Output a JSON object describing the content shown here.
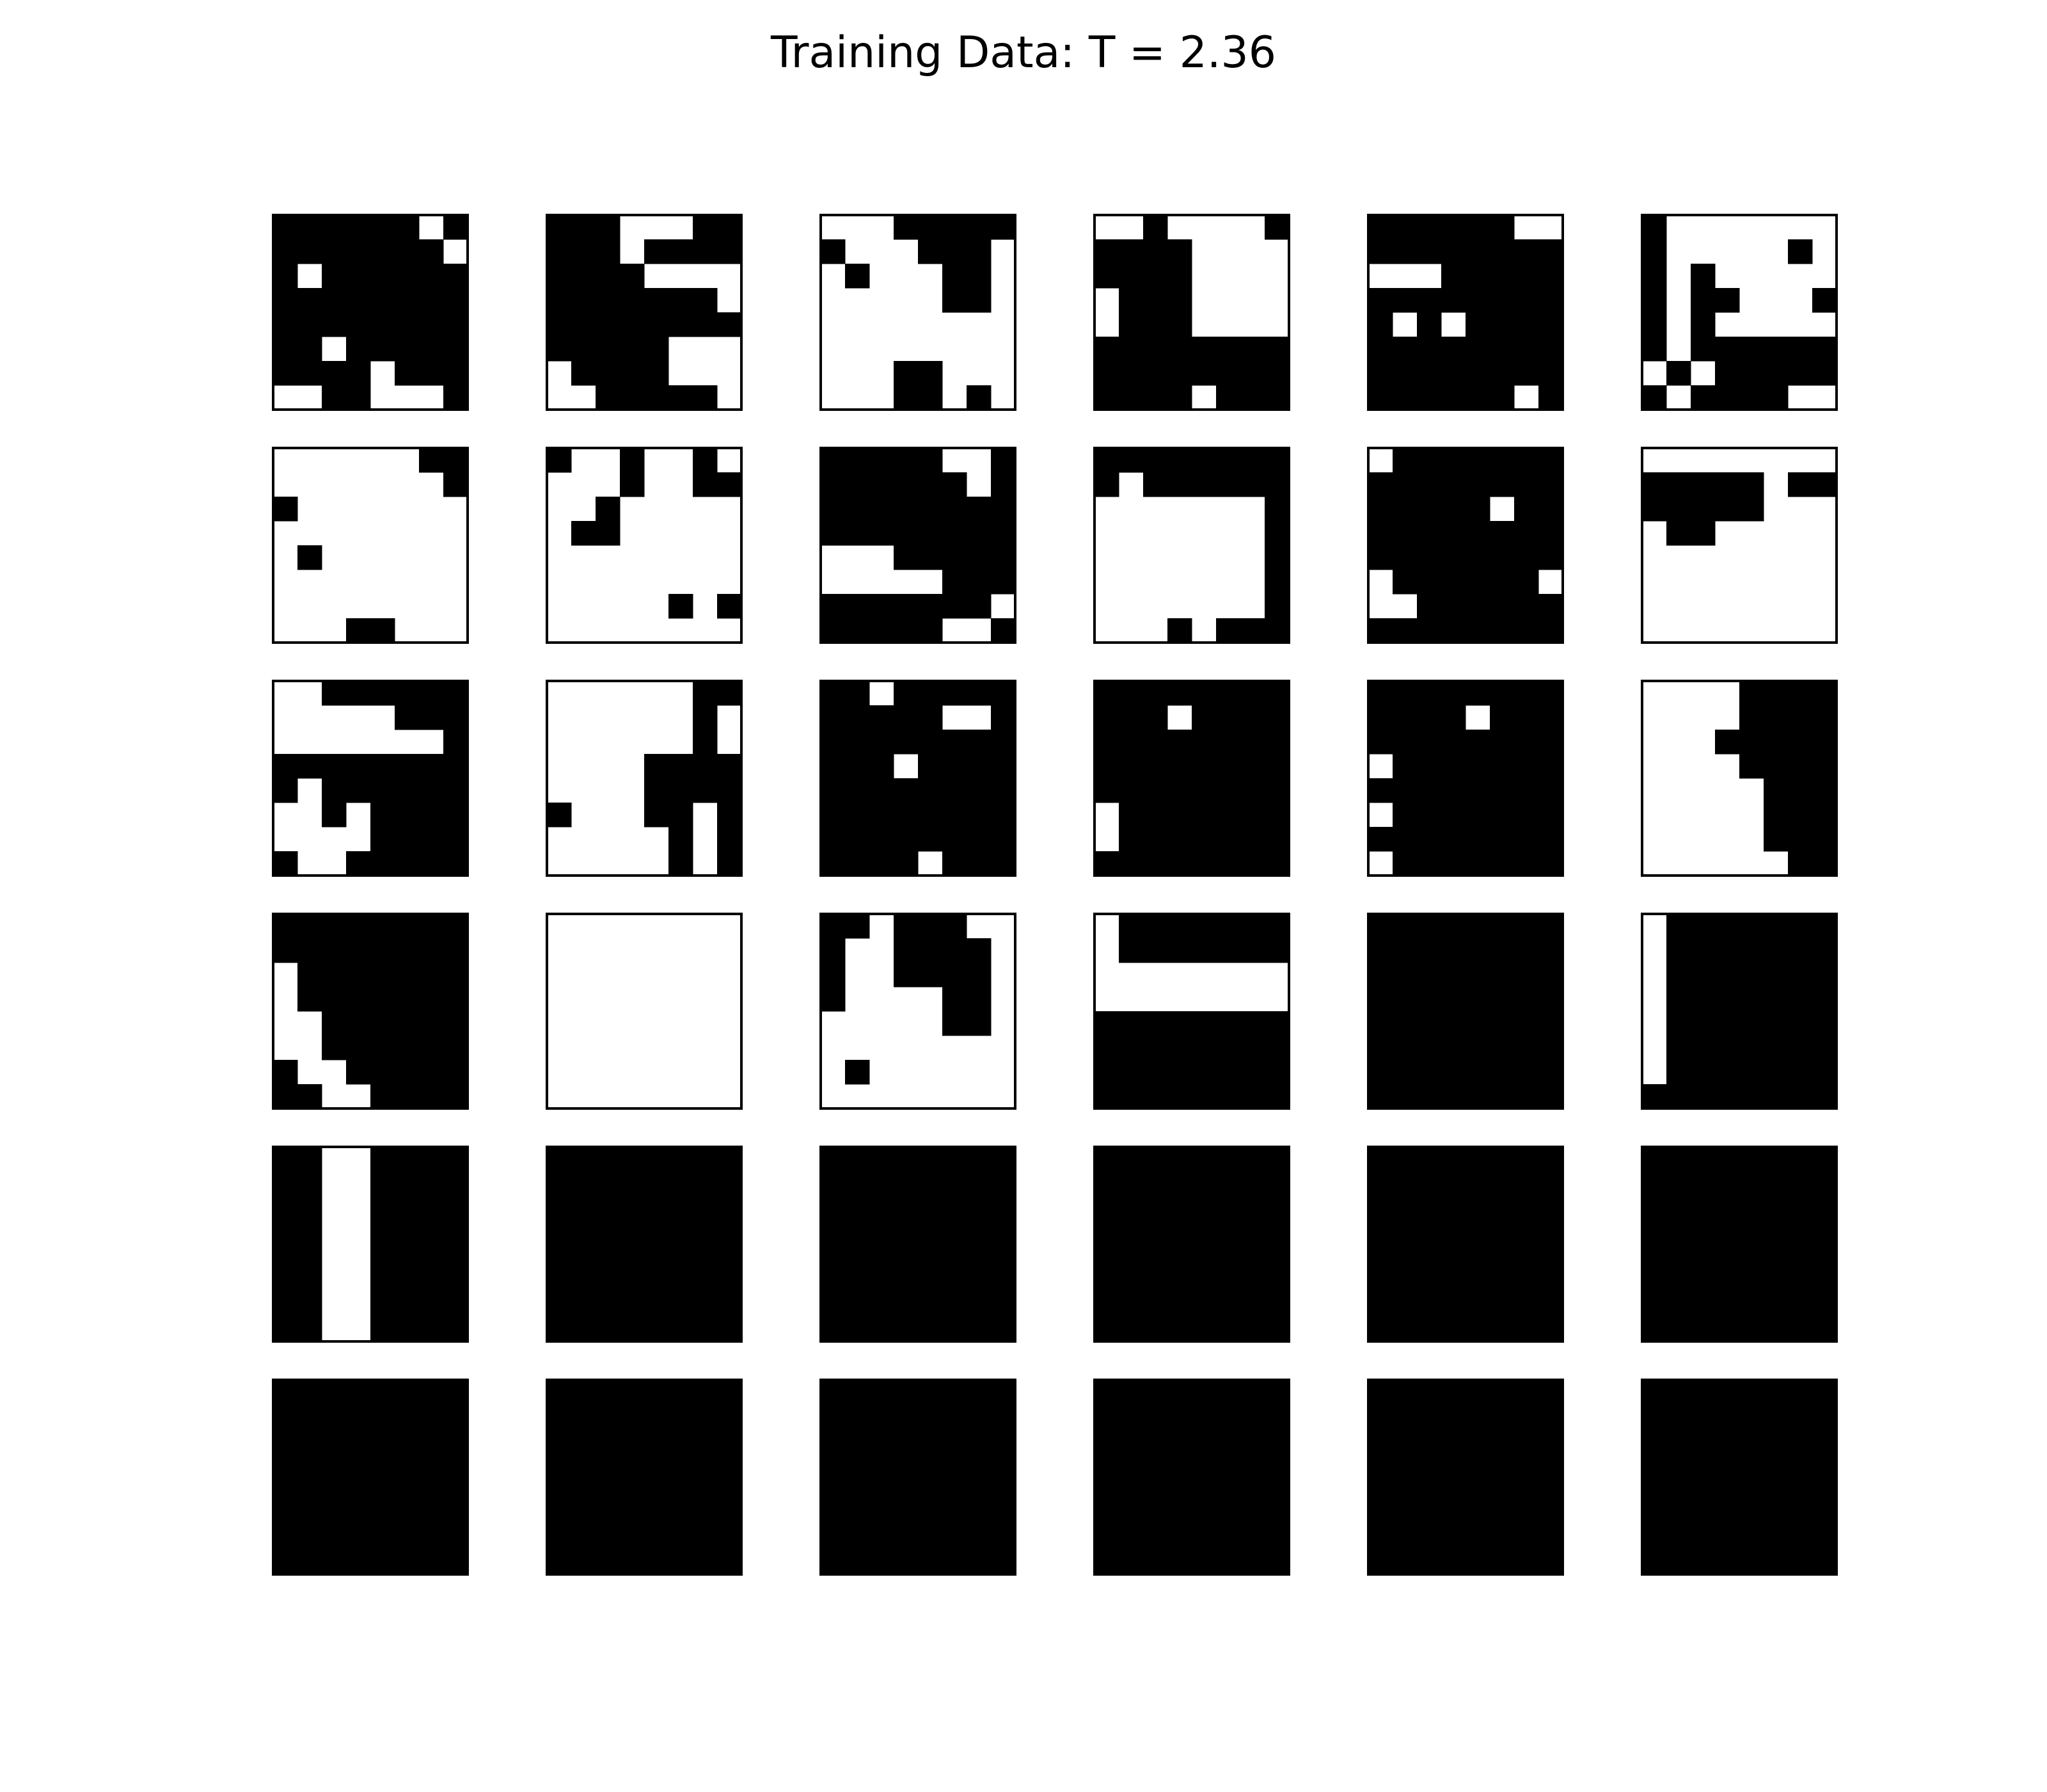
{
  "chart_data": {
    "type": "heatmap",
    "title": "Training Data: T = 2.36",
    "grid": false,
    "panel_rows": 6,
    "panel_cols": 6,
    "lattice_size": 8,
    "cell_colors": {
      "0": "#ffffff",
      "1": "#000000"
    },
    "panels": [
      [
        "11111101",
        "11111110",
        "10111111",
        "11111111",
        "11111111",
        "11011111",
        "11110111",
        "00110001"
      ],
      [
        "11100011",
        "11101111",
        "11110000",
        "11111110",
        "11111111",
        "11111000",
        "01111000",
        "00111110"
      ],
      [
        "00011111",
        "10001110",
        "01000110",
        "00000110",
        "00000000",
        "00000000",
        "00011000",
        "00011010"
      ],
      [
        "00100001",
        "11110000",
        "11110000",
        "01110000",
        "01110000",
        "11111111",
        "11111111",
        "11110111"
      ],
      [
        "11111100",
        "11111111",
        "00011111",
        "11111111",
        "10101111",
        "11111111",
        "11111111",
        "11111101"
      ],
      [
        "10000000",
        "10000010",
        "10100000",
        "10110001",
        "10100000",
        "10111111",
        "01011111",
        "10111100"
      ],
      [
        "00000011",
        "00000001",
        "10000000",
        "00000000",
        "01000000",
        "00000000",
        "00000000",
        "00011000"
      ],
      [
        "10010010",
        "00010011",
        "00100000",
        "01100000",
        "00000000",
        "00000000",
        "00000101",
        "00000000"
      ],
      [
        "11111001",
        "11111101",
        "11111111",
        "11111111",
        "00011111",
        "00000111",
        "11111110",
        "11111001"
      ],
      [
        "11111111",
        "10111111",
        "00000001",
        "00000001",
        "00000001",
        "00000001",
        "00000001",
        "00010111"
      ],
      [
        "01111111",
        "11111111",
        "11111011",
        "11111111",
        "11111111",
        "01111110",
        "00111111",
        "11111111"
      ],
      [
        "00000000",
        "11111011",
        "11111000",
        "01100000",
        "00000000",
        "00000000",
        "00000000",
        "00000000"
      ],
      [
        "00111111",
        "00000111",
        "00000001",
        "11111111",
        "10111111",
        "00101111",
        "00001111",
        "10011111"
      ],
      [
        "00000011",
        "00000010",
        "00000010",
        "00001111",
        "00001111",
        "10001101",
        "00000101",
        "00000101"
      ],
      [
        "11011111",
        "11111001",
        "11111111",
        "11101111",
        "11111111",
        "11111111",
        "11111111",
        "11110111"
      ],
      [
        "11111111",
        "11101111",
        "11111111",
        "11111111",
        "11111111",
        "01111111",
        "01111111",
        "11111111"
      ],
      [
        "11111111",
        "11110111",
        "11111111",
        "01111111",
        "11111111",
        "01111111",
        "11111111",
        "01111111"
      ],
      [
        "00001111",
        "00001111",
        "00011111",
        "00001111",
        "00000111",
        "00000111",
        "00000111",
        "00000011"
      ],
      [
        "11111111",
        "11111111",
        "01111111",
        "01111111",
        "00111111",
        "00111111",
        "10011111",
        "11001111"
      ],
      [
        "00000000",
        "00000000",
        "00000000",
        "00000000",
        "00000000",
        "00000000",
        "00000000",
        "00000000"
      ],
      [
        "11011100",
        "10011110",
        "10011110",
        "10000110",
        "00000110",
        "00000000",
        "01000000",
        "00000000"
      ],
      [
        "01111111",
        "01111111",
        "00000000",
        "00000000",
        "11111111",
        "11111111",
        "11111111",
        "11111111"
      ],
      [
        "11111111",
        "11111111",
        "11111111",
        "11111111",
        "11111111",
        "11111111",
        "11111111",
        "11111111"
      ],
      [
        "01111111",
        "01111111",
        "01111111",
        "01111111",
        "01111111",
        "01111111",
        "01111111",
        "11111111"
      ],
      [
        "11001111",
        "11001111",
        "11001111",
        "11001111",
        "11001111",
        "11001111",
        "11001111",
        "11001111"
      ],
      [
        "11111111",
        "11111111",
        "11111111",
        "11111111",
        "11111111",
        "11111111",
        "11111111",
        "11111111"
      ],
      [
        "11111111",
        "11111111",
        "11111111",
        "11111111",
        "11111111",
        "11111111",
        "11111111",
        "11111111"
      ],
      [
        "11111111",
        "11111111",
        "11111111",
        "11111111",
        "11111111",
        "11111111",
        "11111111",
        "11111111"
      ],
      [
        "11111111",
        "11111111",
        "11111111",
        "11111111",
        "11111111",
        "11111111",
        "11111111",
        "11111111"
      ],
      [
        "11111111",
        "11111111",
        "11111111",
        "11111111",
        "11111111",
        "11111111",
        "11111111",
        "11111111"
      ],
      [
        "11111111",
        "11111111",
        "11111111",
        "11111111",
        "11111111",
        "11111111",
        "11111111",
        "11111111"
      ],
      [
        "11111111",
        "11111111",
        "11111111",
        "11111111",
        "11111111",
        "11111111",
        "11111111",
        "11111111"
      ],
      [
        "11111111",
        "11111111",
        "11111111",
        "11111111",
        "11111111",
        "11111111",
        "11111111",
        "11111111"
      ],
      [
        "11111111",
        "11111111",
        "11111111",
        "11111111",
        "11111111",
        "11111111",
        "11111111",
        "11111111"
      ],
      [
        "11111111",
        "11111111",
        "11111111",
        "11111111",
        "11111111",
        "11111111",
        "11111111",
        "11111111"
      ],
      [
        "11111111",
        "11111111",
        "11111111",
        "11111111",
        "11111111",
        "11111111",
        "11111111",
        "11111111"
      ]
    ]
  }
}
